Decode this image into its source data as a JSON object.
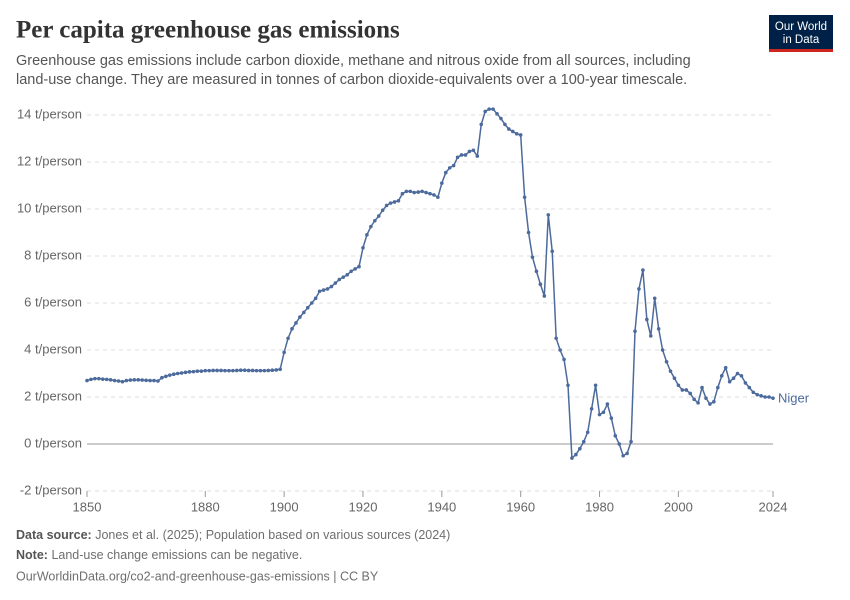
{
  "chart_data": {
    "type": "line",
    "title": "Per capita greenhouse gas emissions",
    "subtitle": [
      "Greenhouse gas emissions include carbon dioxide, methane and nitrous oxide from all sources, including",
      "land-use change. They are measured in tonnes of carbon dioxide-equivalents over a 100-year timescale."
    ],
    "x": [
      1850,
      1851,
      1852,
      1853,
      1854,
      1855,
      1856,
      1857,
      1858,
      1859,
      1860,
      1861,
      1862,
      1863,
      1864,
      1865,
      1866,
      1867,
      1868,
      1869,
      1870,
      1871,
      1872,
      1873,
      1874,
      1875,
      1876,
      1877,
      1878,
      1879,
      1880,
      1881,
      1882,
      1883,
      1884,
      1885,
      1886,
      1887,
      1888,
      1889,
      1890,
      1891,
      1892,
      1893,
      1894,
      1895,
      1896,
      1897,
      1898,
      1899,
      1900,
      1901,
      1902,
      1903,
      1904,
      1905,
      1906,
      1907,
      1908,
      1909,
      1910,
      1911,
      1912,
      1913,
      1914,
      1915,
      1916,
      1917,
      1918,
      1919,
      1920,
      1921,
      1922,
      1923,
      1924,
      1925,
      1926,
      1927,
      1928,
      1929,
      1930,
      1931,
      1932,
      1933,
      1934,
      1935,
      1936,
      1937,
      1938,
      1939,
      1940,
      1941,
      1942,
      1943,
      1944,
      1945,
      1946,
      1947,
      1948,
      1949,
      1950,
      1951,
      1952,
      1953,
      1954,
      1955,
      1956,
      1957,
      1958,
      1959,
      1960,
      1961,
      1962,
      1963,
      1964,
      1965,
      1966,
      1967,
      1968,
      1969,
      1970,
      1971,
      1972,
      1973,
      1974,
      1975,
      1976,
      1977,
      1978,
      1979,
      1980,
      1981,
      1982,
      1983,
      1984,
      1985,
      1986,
      1987,
      1988,
      1989,
      1990,
      1991,
      1992,
      1993,
      1994,
      1995,
      1996,
      1997,
      1998,
      1999,
      2000,
      2001,
      2002,
      2003,
      2004,
      2005,
      2006,
      2007,
      2008,
      2009,
      2010,
      2011,
      2012,
      2013,
      2014,
      2015,
      2016,
      2017,
      2018,
      2019,
      2020,
      2021,
      2022,
      2023,
      2024
    ],
    "series": [
      {
        "name": "Niger",
        "color": "#4c6a9c",
        "values": [
          2.7,
          2.75,
          2.78,
          2.78,
          2.76,
          2.75,
          2.73,
          2.7,
          2.68,
          2.65,
          2.7,
          2.72,
          2.73,
          2.73,
          2.72,
          2.71,
          2.7,
          2.7,
          2.68,
          2.82,
          2.88,
          2.93,
          2.97,
          3.0,
          3.02,
          3.05,
          3.07,
          3.08,
          3.1,
          3.1,
          3.12,
          3.12,
          3.13,
          3.13,
          3.13,
          3.12,
          3.12,
          3.12,
          3.13,
          3.14,
          3.14,
          3.13,
          3.13,
          3.12,
          3.12,
          3.12,
          3.13,
          3.14,
          3.15,
          3.18,
          3.9,
          4.5,
          4.9,
          5.15,
          5.4,
          5.6,
          5.8,
          6.0,
          6.2,
          6.5,
          6.55,
          6.6,
          6.7,
          6.85,
          7.0,
          7.1,
          7.2,
          7.35,
          7.45,
          7.55,
          8.35,
          8.9,
          9.25,
          9.5,
          9.7,
          9.95,
          10.15,
          10.25,
          10.3,
          10.35,
          10.65,
          10.75,
          10.75,
          10.7,
          10.72,
          10.75,
          10.7,
          10.65,
          10.6,
          10.5,
          11.1,
          11.55,
          11.75,
          11.85,
          12.2,
          12.3,
          12.3,
          12.45,
          12.5,
          12.25,
          13.6,
          14.15,
          14.25,
          14.25,
          14.05,
          13.85,
          13.6,
          13.4,
          13.3,
          13.2,
          13.15,
          10.5,
          9.0,
          7.95,
          7.35,
          6.8,
          6.3,
          9.75,
          8.2,
          4.5,
          4.0,
          3.6,
          2.5,
          -0.6,
          -0.45,
          -0.2,
          0.1,
          0.5,
          1.5,
          2.5,
          1.25,
          1.35,
          1.7,
          1.1,
          0.35,
          0.0,
          -0.5,
          -0.4,
          0.1,
          4.8,
          6.6,
          7.4,
          5.3,
          4.6,
          6.2,
          4.9,
          4.0,
          3.5,
          3.1,
          2.8,
          2.5,
          2.3,
          2.3,
          2.15,
          1.9,
          1.75,
          2.4,
          1.95,
          1.7,
          1.8,
          2.4,
          2.9,
          3.25,
          2.65,
          2.8,
          3.0,
          2.9,
          2.6,
          2.4,
          2.2,
          2.1,
          2.05,
          2.0,
          2.0,
          1.95
        ]
      }
    ],
    "xlim": [
      1850,
      2024
    ],
    "xticks": [
      1850,
      1880,
      1900,
      1920,
      1940,
      1960,
      1980,
      2000,
      2024
    ],
    "ylim": [
      -2,
      14
    ],
    "yticks": [
      {
        "value": -2,
        "label": "-2 t/person"
      },
      {
        "value": 0,
        "label": "0 t/person"
      },
      {
        "value": 2,
        "label": "2 t/person"
      },
      {
        "value": 4,
        "label": "4 t/person"
      },
      {
        "value": 6,
        "label": "6 t/person"
      },
      {
        "value": 8,
        "label": "8 t/person"
      },
      {
        "value": 10,
        "label": "10 t/person"
      },
      {
        "value": 12,
        "label": "12 t/person"
      },
      {
        "value": 14,
        "label": "14 t/person"
      }
    ],
    "grid": true
  },
  "footer": {
    "source_label": "Data source:",
    "source": "Jones et al. (2025); Population based on various sources (2024)",
    "note_label": "Note:",
    "note": "Land-use change emissions can be negative.",
    "url": "OurWorldinData.org/co2-and-greenhouse-gas-emissions | CC BY"
  },
  "logo": {
    "line1": "Our World",
    "line2": "in Data"
  }
}
